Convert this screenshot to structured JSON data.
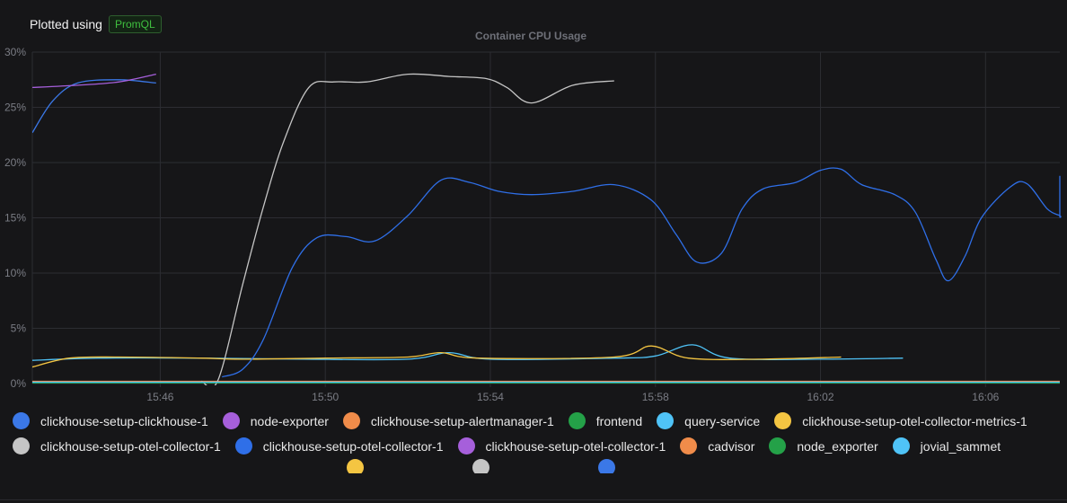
{
  "header": {
    "plotted_label": "Plotted using",
    "query_language": "PromQL"
  },
  "chart_data": {
    "type": "line",
    "title": "Container CPU Usage",
    "xlabel": "",
    "ylabel": "",
    "x_ticks": [
      "15:46",
      "15:50",
      "15:54",
      "15:58",
      "16:02",
      "16:06"
    ],
    "x_tick_minutes": [
      0,
      4,
      8,
      12,
      16,
      20
    ],
    "x_range_minutes": [
      -3.1,
      21.8
    ],
    "y_ticks": [
      "0%",
      "5%",
      "10%",
      "15%",
      "20%",
      "25%",
      "30%"
    ],
    "y_tick_values": [
      0,
      5,
      10,
      15,
      20,
      25,
      30
    ],
    "ylim": [
      0,
      30
    ],
    "grid": true,
    "legend_position": "bottom",
    "series": [
      {
        "name": "clickhouse-setup-clickhouse-1",
        "color": "#3b78e7",
        "points": [
          [
            -3.1,
            22.7
          ],
          [
            -2.6,
            25.6
          ],
          [
            -2.0,
            27.2
          ],
          [
            -1.0,
            27.5
          ],
          [
            -0.1,
            27.2
          ]
        ]
      },
      {
        "name": "node-exporter",
        "color": "#a65fdb",
        "points": [
          [
            -3.1,
            26.8
          ],
          [
            -2.0,
            27.0
          ],
          [
            -1.0,
            27.3
          ],
          [
            -0.1,
            28.0
          ]
        ]
      },
      {
        "name": "clickhouse-setup-alertmanager-1",
        "color": "#f08c4a",
        "points": [
          [
            -3.1,
            0.2
          ],
          [
            6.0,
            0.2
          ],
          [
            12.0,
            0.2
          ],
          [
            21.8,
            0.2
          ]
        ]
      },
      {
        "name": "frontend",
        "color": "#24a148",
        "points": [
          [
            -3.1,
            0.05
          ],
          [
            21.8,
            0.05
          ]
        ]
      },
      {
        "name": "query-service",
        "color": "#4fc3f7",
        "points": [
          [
            -3.1,
            2.1
          ],
          [
            -1.5,
            2.3
          ],
          [
            1.0,
            2.3
          ],
          [
            3.5,
            2.2
          ],
          [
            6.0,
            2.2
          ],
          [
            7.0,
            2.8
          ],
          [
            8.0,
            2.2
          ],
          [
            11.0,
            2.3
          ],
          [
            12.0,
            2.5
          ],
          [
            12.9,
            3.5
          ],
          [
            13.8,
            2.3
          ],
          [
            16.0,
            2.2
          ],
          [
            18.0,
            2.3
          ]
        ]
      },
      {
        "name": "clickhouse-setup-otel-collector-metrics-1",
        "color": "#f4c542",
        "points": [
          [
            -3.1,
            1.5
          ],
          [
            -2.2,
            2.3
          ],
          [
            -1.0,
            2.4
          ],
          [
            1.0,
            2.3
          ],
          [
            2.0,
            2.2
          ],
          [
            4.0,
            2.3
          ],
          [
            6.0,
            2.4
          ],
          [
            6.8,
            2.8
          ],
          [
            7.7,
            2.3
          ],
          [
            11.0,
            2.4
          ],
          [
            11.9,
            3.4
          ],
          [
            12.8,
            2.3
          ],
          [
            14.5,
            2.2
          ],
          [
            16.5,
            2.4
          ]
        ]
      },
      {
        "name": "clickhouse-setup-otel-collector-1",
        "color": "#c5c5c5",
        "points": [
          [
            1.0,
            0.2
          ],
          [
            1.4,
            0.3
          ],
          [
            2.0,
            9.0
          ],
          [
            2.5,
            16.0
          ],
          [
            3.0,
            22.0
          ],
          [
            3.6,
            26.8
          ],
          [
            4.2,
            27.3
          ],
          [
            5.0,
            27.3
          ],
          [
            6.0,
            28.0
          ],
          [
            7.0,
            27.8
          ],
          [
            7.9,
            27.6
          ],
          [
            8.4,
            26.8
          ],
          [
            9.0,
            25.4
          ],
          [
            10.0,
            27.0
          ],
          [
            11.0,
            27.4
          ]
        ]
      },
      {
        "name": "clickhouse-setup-otel-collector-1",
        "color": "#2f6fe8",
        "points": [
          [
            1.5,
            0.6
          ],
          [
            2.0,
            1.3
          ],
          [
            2.5,
            4.0
          ],
          [
            3.2,
            10.5
          ],
          [
            3.8,
            13.2
          ],
          [
            4.5,
            13.3
          ],
          [
            5.2,
            12.9
          ],
          [
            6.0,
            15.2
          ],
          [
            6.8,
            18.4
          ],
          [
            7.5,
            18.2
          ],
          [
            8.2,
            17.4
          ],
          [
            9.0,
            17.1
          ],
          [
            10.0,
            17.4
          ],
          [
            11.0,
            18.0
          ],
          [
            11.9,
            16.6
          ],
          [
            12.5,
            13.5
          ],
          [
            13.0,
            11.0
          ],
          [
            13.6,
            11.8
          ],
          [
            14.1,
            15.8
          ],
          [
            14.6,
            17.6
          ],
          [
            15.4,
            18.2
          ],
          [
            16.0,
            19.3
          ],
          [
            16.5,
            19.4
          ],
          [
            17.0,
            18.0
          ],
          [
            17.8,
            17.1
          ],
          [
            18.3,
            15.5
          ],
          [
            18.8,
            11.2
          ],
          [
            19.1,
            9.3
          ],
          [
            19.5,
            11.5
          ],
          [
            19.9,
            15.0
          ],
          [
            20.6,
            17.8
          ],
          [
            21.0,
            18.1
          ],
          [
            21.5,
            15.8
          ],
          [
            22.0,
            15.2
          ],
          [
            23.0,
            15.1
          ],
          [
            23.5,
            16.0
          ],
          [
            24.2,
            18.8
          ]
        ]
      },
      {
        "name": "clickhouse-setup-otel-collector-1",
        "color": "#a65fdb",
        "points": [
          [
            -3.1,
            0.1
          ],
          [
            21.8,
            0.1
          ]
        ]
      },
      {
        "name": "cadvisor",
        "color": "#f08c4a",
        "points": [
          [
            -3.1,
            0.15
          ],
          [
            21.8,
            0.15
          ]
        ]
      },
      {
        "name": "node_exporter",
        "color": "#24a148",
        "points": [
          [
            -3.1,
            0.08
          ],
          [
            21.8,
            0.08
          ]
        ]
      },
      {
        "name": "jovial_sammet",
        "color": "#4fc3f7",
        "points": [
          [
            -3.1,
            0.12
          ],
          [
            21.8,
            0.12
          ]
        ]
      }
    ],
    "legend_partial": [
      {
        "color": "#f4c542"
      },
      {
        "color": "#c5c5c5"
      },
      {
        "color": "#3b78e7"
      }
    ]
  }
}
